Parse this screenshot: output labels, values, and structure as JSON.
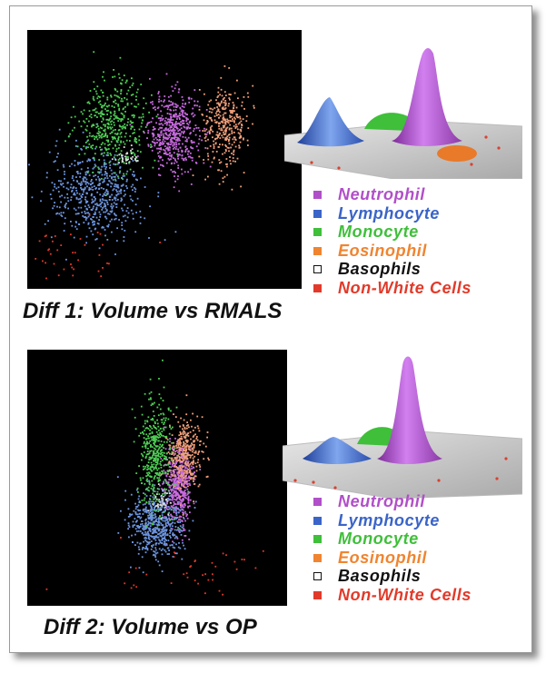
{
  "figure": {
    "charts": [
      {
        "caption": "Diff 1: Volume vs RMALS",
        "x_axis": "Volume",
        "y_axis": "RMALS",
        "legend": [
          {
            "label": "Neutrophil",
            "color": "#b14fc9",
            "hollow": false
          },
          {
            "label": "Lymphocyte",
            "color": "#3a64c8",
            "hollow": false
          },
          {
            "label": "Monocyte",
            "color": "#3fbf3a",
            "hollow": false
          },
          {
            "label": "Eosinophil",
            "color": "#f08430",
            "hollow": false
          },
          {
            "label": "Basophils",
            "color": "#111111",
            "hollow": true
          },
          {
            "label": "Non-White Cells",
            "color": "#e23a2a",
            "hollow": false
          }
        ]
      },
      {
        "caption": "Diff 2: Volume vs OP",
        "x_axis": "Volume",
        "y_axis": "OP",
        "legend": [
          {
            "label": "Neutrophil",
            "color": "#b14fc9",
            "hollow": false
          },
          {
            "label": "Lymphocyte",
            "color": "#3a64c8",
            "hollow": false
          },
          {
            "label": "Monocyte",
            "color": "#3fbf3a",
            "hollow": false
          },
          {
            "label": "Eosinophil",
            "color": "#f08430",
            "hollow": false
          },
          {
            "label": "Basophils",
            "color": "#111111",
            "hollow": true
          },
          {
            "label": "Non-White Cells",
            "color": "#e23a2a",
            "hollow": false
          }
        ]
      }
    ]
  },
  "chart_data": [
    {
      "type": "scatter",
      "title": "Diff 1: Volume vs RMALS",
      "xlabel": "Volume",
      "ylabel": "RMALS",
      "xlim": [
        0,
        100
      ],
      "ylim": [
        0,
        100
      ],
      "grid": false,
      "legend_position": "right",
      "series": [
        {
          "name": "Neutrophil",
          "color": "#c96ae0",
          "cluster": {
            "cx": 53,
            "cy": 61,
            "sx": 4.5,
            "sy": 7.5
          }
        },
        {
          "name": "Lymphocyte",
          "color": "#6d95e0",
          "cluster": {
            "cx": 25,
            "cy": 37,
            "sx": 8.5,
            "sy": 8.5
          }
        },
        {
          "name": "Monocyte",
          "color": "#4fcf55",
          "cluster": {
            "cx": 31,
            "cy": 64,
            "sx": 6.5,
            "sy": 8.5
          }
        },
        {
          "name": "Eosinophil",
          "color": "#f2a07a",
          "cluster": {
            "cx": 72,
            "cy": 63,
            "sx": 4,
            "sy": 8
          }
        },
        {
          "name": "Basophils",
          "color": "#dddddd",
          "cluster": {
            "cx": 36,
            "cy": 51,
            "sx": 3,
            "sy": 2
          }
        },
        {
          "name": "Non-White Cells",
          "color": "#e23a2a",
          "cluster": {
            "cx": 14,
            "cy": 14,
            "sx": 9,
            "sy": 6
          }
        }
      ],
      "surface_peaks": [
        {
          "series": "Neutrophil",
          "color": "#b14fc9",
          "relative_height": 1.0
        },
        {
          "series": "Lymphocyte",
          "color": "#3a64c8",
          "relative_height": 0.22
        },
        {
          "series": "Monocyte",
          "color": "#3fbf3a",
          "relative_height": 0.12
        },
        {
          "series": "Eosinophil",
          "color": "#f08430",
          "relative_height": 0.08
        }
      ]
    },
    {
      "type": "scatter",
      "title": "Diff 2: Volume vs OP",
      "xlabel": "Volume",
      "ylabel": "OP",
      "xlim": [
        0,
        100
      ],
      "ylim": [
        0,
        100
      ],
      "grid": false,
      "legend_position": "right",
      "series": [
        {
          "name": "Neutrophil",
          "color": "#c96ae0",
          "cluster": {
            "cx": 58,
            "cy": 47,
            "sx": 2.5,
            "sy": 8
          }
        },
        {
          "name": "Lymphocyte",
          "color": "#6d95e0",
          "cluster": {
            "cx": 49,
            "cy": 32,
            "sx": 5.5,
            "sy": 6.5
          }
        },
        {
          "name": "Monocyte",
          "color": "#4fcf55",
          "cluster": {
            "cx": 49,
            "cy": 60,
            "sx": 3.5,
            "sy": 11
          }
        },
        {
          "name": "Eosinophil",
          "color": "#f2a07a",
          "cluster": {
            "cx": 61,
            "cy": 60,
            "sx": 3,
            "sy": 7
          }
        },
        {
          "name": "Basophils",
          "color": "#dddddd",
          "cluster": {
            "cx": 52,
            "cy": 41,
            "sx": 2.5,
            "sy": 2.5
          }
        },
        {
          "name": "Non-White Cells",
          "color": "#e23a2a",
          "cluster": {
            "cx": 60,
            "cy": 14,
            "sx": 18,
            "sy": 5
          }
        }
      ],
      "surface_peaks": [
        {
          "series": "Neutrophil",
          "color": "#b14fc9",
          "relative_height": 1.0
        },
        {
          "series": "Lymphocyte",
          "color": "#3a64c8",
          "relative_height": 0.2
        },
        {
          "series": "Monocyte",
          "color": "#3fbf3a",
          "relative_height": 0.1
        }
      ]
    }
  ]
}
